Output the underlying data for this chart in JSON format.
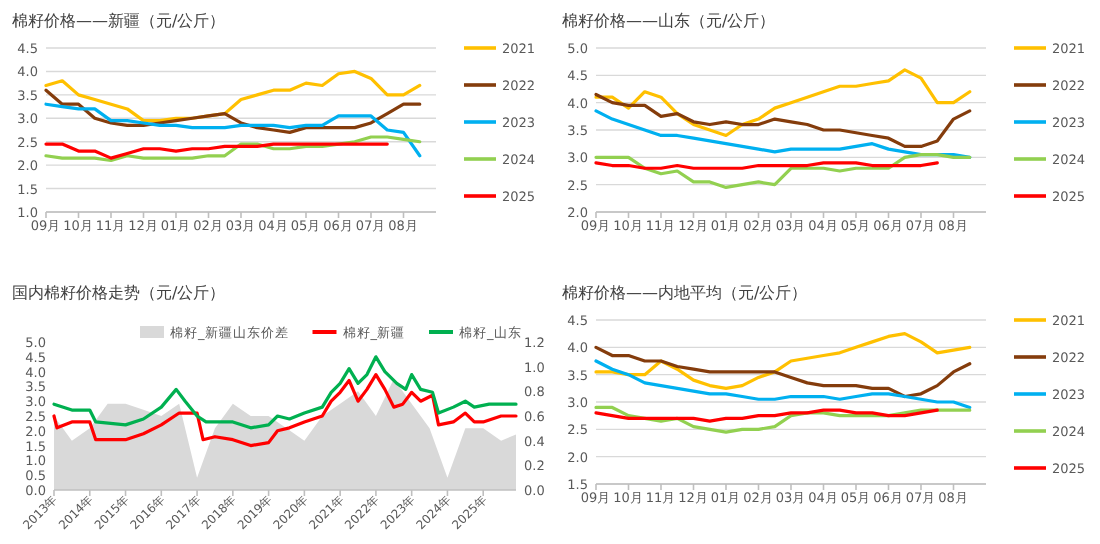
{
  "chart_data": [
    {
      "type": "line",
      "title": "棉籽价格——新疆（元/公斤）",
      "legend": "right",
      "grid": "y",
      "categories": [
        "09月",
        null,
        "10月",
        null,
        "11月",
        null,
        "12月",
        null,
        "01月",
        null,
        "02月",
        null,
        "03月",
        null,
        "04月",
        null,
        "05月",
        null,
        "06月",
        null,
        "07月",
        null,
        "08月",
        null
      ],
      "ylim": [
        1,
        4.5
      ],
      "yticks": [
        {
          "value": 1,
          "label": "1.0"
        },
        1.5,
        {
          "value": 2,
          "label": "2.0"
        },
        2.5,
        {
          "value": 3,
          "label": "3.0"
        },
        3.5,
        {
          "value": 4,
          "label": "4.0"
        },
        4.5
      ],
      "series": [
        {
          "name": "2021",
          "color": "#ffc000",
          "values": [
            3.7,
            3.8,
            3.5,
            3.4,
            3.3,
            3.2,
            2.95,
            2.95,
            3.0,
            3.0,
            3.05,
            3.1,
            3.4,
            3.5,
            3.6,
            3.6,
            3.75,
            3.7,
            3.95,
            4.0,
            3.85,
            3.5,
            3.5,
            3.7
          ]
        },
        {
          "name": "2022",
          "color": "#843c0c",
          "values": [
            3.6,
            3.3,
            3.3,
            3.0,
            2.9,
            2.85,
            2.85,
            2.9,
            2.95,
            3.0,
            3.05,
            3.1,
            2.9,
            2.8,
            2.75,
            2.7,
            2.8,
            2.8,
            2.8,
            2.8,
            2.9,
            3.1,
            3.3,
            3.3
          ]
        },
        {
          "name": "2023",
          "color": "#00b0f0",
          "values": [
            3.3,
            3.25,
            3.2,
            3.2,
            2.95,
            2.95,
            2.9,
            2.85,
            2.85,
            2.8,
            2.8,
            2.8,
            2.85,
            2.85,
            2.85,
            2.8,
            2.85,
            2.85,
            3.05,
            3.05,
            3.05,
            2.75,
            2.7,
            2.2
          ]
        },
        {
          "name": "2024",
          "color": "#92d050",
          "values": [
            2.2,
            2.15,
            2.15,
            2.15,
            2.1,
            2.2,
            2.15,
            2.15,
            2.15,
            2.15,
            2.2,
            2.2,
            2.45,
            2.45,
            2.35,
            2.35,
            2.4,
            2.4,
            2.45,
            2.5,
            2.6,
            2.6,
            2.55,
            2.5
          ]
        },
        {
          "name": "2025",
          "color": "#ff0000",
          "values": [
            2.45,
            2.45,
            2.3,
            2.3,
            2.15,
            2.25,
            2.35,
            2.35,
            2.3,
            2.35,
            2.35,
            2.4,
            2.4,
            2.4,
            2.45,
            2.45,
            2.45,
            2.45,
            2.45,
            2.45,
            2.45,
            2.45,
            null,
            null
          ]
        }
      ]
    },
    {
      "type": "line",
      "title": "棉籽价格——山东（元/公斤）",
      "legend": "right",
      "grid": "y",
      "categories": [
        "09月",
        null,
        "10月",
        null,
        "11月",
        null,
        "12月",
        null,
        "01月",
        null,
        "02月",
        null,
        "03月",
        null,
        "04月",
        null,
        "05月",
        null,
        "06月",
        null,
        "07月",
        null,
        "08月",
        null
      ],
      "ylim": [
        2,
        5
      ],
      "yticks": [
        {
          "value": 2,
          "label": "2.0"
        },
        2.5,
        {
          "value": 3,
          "label": "3.0"
        },
        3.5,
        {
          "value": 4,
          "label": "4.0"
        },
        4.5,
        {
          "value": 5,
          "label": "5.0"
        }
      ],
      "series": [
        {
          "name": "2021",
          "color": "#ffc000",
          "values": [
            4.1,
            4.1,
            3.9,
            4.2,
            4.1,
            3.8,
            3.6,
            3.5,
            3.4,
            3.6,
            3.7,
            3.9,
            4.0,
            4.1,
            4.2,
            4.3,
            4.3,
            4.35,
            4.4,
            4.6,
            4.45,
            4.0,
            4.0,
            4.2
          ]
        },
        {
          "name": "2022",
          "color": "#843c0c",
          "values": [
            4.15,
            4.0,
            3.95,
            3.95,
            3.75,
            3.8,
            3.65,
            3.6,
            3.65,
            3.6,
            3.6,
            3.7,
            3.65,
            3.6,
            3.5,
            3.5,
            3.45,
            3.4,
            3.35,
            3.2,
            3.2,
            3.3,
            3.7,
            3.85
          ]
        },
        {
          "name": "2023",
          "color": "#00b0f0",
          "values": [
            3.85,
            3.7,
            3.6,
            3.5,
            3.4,
            3.4,
            3.35,
            3.3,
            3.25,
            3.2,
            3.15,
            3.1,
            3.15,
            3.15,
            3.15,
            3.15,
            3.2,
            3.25,
            3.15,
            3.1,
            3.05,
            3.05,
            3.05,
            3.0
          ]
        },
        {
          "name": "2024",
          "color": "#92d050",
          "values": [
            3.0,
            3.0,
            3.0,
            2.8,
            2.7,
            2.75,
            2.55,
            2.55,
            2.45,
            2.5,
            2.55,
            2.5,
            2.8,
            2.8,
            2.8,
            2.75,
            2.8,
            2.8,
            2.8,
            3.0,
            3.05,
            3.05,
            3.0,
            3.0
          ]
        },
        {
          "name": "2025",
          "color": "#ff0000",
          "values": [
            2.9,
            2.85,
            2.85,
            2.8,
            2.8,
            2.85,
            2.8,
            2.8,
            2.8,
            2.8,
            2.85,
            2.85,
            2.85,
            2.85,
            2.9,
            2.9,
            2.9,
            2.85,
            2.85,
            2.85,
            2.85,
            2.9,
            null,
            null
          ]
        }
      ]
    },
    {
      "type": "line",
      "title": "国内棉籽价格走势（元/公斤）",
      "legend": "top",
      "grid": false,
      "xlim": [
        "2013-01",
        "2025-12"
      ],
      "xticks": [
        {
          "value": "2013",
          "label": "2013年"
        },
        {
          "value": "2014",
          "label": "2014年"
        },
        {
          "value": "2015",
          "label": "2015年"
        },
        {
          "value": "2016",
          "label": "2016年"
        },
        {
          "value": "2017",
          "label": "2017年"
        },
        {
          "value": "2018",
          "label": "2018年"
        },
        {
          "value": "2019",
          "label": "2019年"
        },
        {
          "value": "2020",
          "label": "2020年"
        },
        {
          "value": "2021",
          "label": "2021年"
        },
        {
          "value": "2022",
          "label": "2022年"
        },
        {
          "value": "2023",
          "label": "2023年"
        },
        {
          "value": "2024",
          "label": "2024年"
        },
        {
          "value": "2025",
          "label": "2025年"
        }
      ],
      "ylim": [
        0,
        5
      ],
      "yticks": [
        {
          "value": 0,
          "label": "0.0"
        },
        0.5,
        {
          "value": 1,
          "label": "1.0"
        },
        1.5,
        {
          "value": 2,
          "label": "2.0"
        },
        2.5,
        {
          "value": 3,
          "label": "3.0"
        },
        3.5,
        {
          "value": 4,
          "label": "4.0"
        },
        4.5,
        {
          "value": 5,
          "label": "5.0"
        }
      ],
      "y2lim": [
        0,
        1.2
      ],
      "y2ticks": [
        {
          "value": 0,
          "label": "0.0"
        },
        0.2,
        0.4,
        0.6,
        0.8,
        {
          "value": 1,
          "label": "1.0"
        },
        1.2
      ],
      "series": [
        {
          "name": "棉籽_新疆山东价差",
          "type": "area",
          "axis": "y2",
          "color": "#d9d9d9",
          "x": [
            "2013-01",
            "2013-07",
            "2014-01",
            "2014-07",
            "2015-01",
            "2015-07",
            "2016-01",
            "2016-07",
            "2017-01",
            "2017-07",
            "2018-01",
            "2018-07",
            "2019-01",
            "2019-07",
            "2020-01",
            "2020-07",
            "2021-01",
            "2021-07",
            "2022-01",
            "2022-07",
            "2023-01",
            "2023-07",
            "2024-01",
            "2024-07",
            "2025-01",
            "2025-07",
            "2025-12"
          ],
          "values": [
            0.6,
            0.4,
            0.5,
            0.7,
            0.7,
            0.65,
            0.6,
            0.7,
            0.1,
            0.5,
            0.7,
            0.6,
            0.6,
            0.5,
            0.4,
            0.6,
            0.7,
            0.8,
            0.6,
            0.9,
            0.7,
            0.5,
            0.1,
            0.5,
            0.5,
            0.4,
            0.45
          ]
        },
        {
          "name": "棉籽_新疆",
          "color": "#ff0000",
          "x": [
            "2013-01",
            "2013-02",
            "2013-07",
            "2014-01",
            "2014-03",
            "2014-07",
            "2015-01",
            "2015-07",
            "2016-01",
            "2016-07",
            "2017-01",
            "2017-03",
            "2017-07",
            "2018-01",
            "2018-07",
            "2019-01",
            "2019-04",
            "2019-08",
            "2020-01",
            "2020-07",
            "2020-10",
            "2021-01",
            "2021-04",
            "2021-07",
            "2021-10",
            "2022-01",
            "2022-04",
            "2022-07",
            "2022-10",
            "2023-01",
            "2023-04",
            "2023-08",
            "2023-10",
            "2024-03",
            "2024-07",
            "2024-10",
            "2025-01",
            "2025-07",
            "2025-12"
          ],
          "values": [
            2.5,
            2.1,
            2.3,
            2.3,
            1.7,
            1.7,
            1.7,
            1.9,
            2.2,
            2.6,
            2.6,
            1.7,
            1.8,
            1.7,
            1.5,
            1.6,
            2.0,
            2.1,
            2.3,
            2.5,
            3.0,
            3.3,
            3.7,
            3.0,
            3.4,
            3.9,
            3.4,
            2.8,
            2.9,
            3.3,
            3.0,
            3.2,
            2.2,
            2.3,
            2.6,
            2.3,
            2.3,
            2.5,
            2.5
          ]
        },
        {
          "name": "棉籽_山东",
          "color": "#00b050",
          "x": [
            "2013-01",
            "2013-07",
            "2014-01",
            "2014-03",
            "2015-01",
            "2015-07",
            "2016-01",
            "2016-06",
            "2016-09",
            "2017-01",
            "2017-04",
            "2018-01",
            "2018-07",
            "2019-01",
            "2019-04",
            "2019-08",
            "2020-01",
            "2020-07",
            "2020-10",
            "2021-01",
            "2021-04",
            "2021-07",
            "2021-10",
            "2022-01",
            "2022-04",
            "2022-08",
            "2022-11",
            "2023-01",
            "2023-04",
            "2023-08",
            "2023-10",
            "2024-03",
            "2024-07",
            "2024-10",
            "2025-03",
            "2025-12"
          ],
          "values": [
            2.9,
            2.7,
            2.7,
            2.3,
            2.2,
            2.4,
            2.8,
            3.4,
            3.0,
            2.5,
            2.3,
            2.3,
            2.1,
            2.2,
            2.5,
            2.4,
            2.6,
            2.8,
            3.3,
            3.6,
            4.1,
            3.6,
            3.9,
            4.5,
            4.0,
            3.6,
            3.4,
            3.9,
            3.4,
            3.3,
            2.6,
            2.8,
            3.0,
            2.8,
            2.9,
            2.9
          ]
        }
      ]
    },
    {
      "type": "line",
      "title": "棉籽价格——内地平均（元/公斤）",
      "legend": "right",
      "grid": "y",
      "categories": [
        "09月",
        null,
        "10月",
        null,
        "11月",
        null,
        "12月",
        null,
        "01月",
        null,
        "02月",
        null,
        "03月",
        null,
        "04月",
        null,
        "05月",
        null,
        "06月",
        null,
        "07月",
        null,
        "08月",
        null
      ],
      "ylim": [
        1.5,
        4.5
      ],
      "yticks": [
        1.5,
        {
          "value": 2,
          "label": "2.0"
        },
        2.5,
        {
          "value": 3,
          "label": "3.0"
        },
        3.5,
        {
          "value": 4,
          "label": "4.0"
        },
        4.5
      ],
      "series": [
        {
          "name": "2021",
          "color": "#ffc000",
          "values": [
            3.55,
            3.55,
            3.5,
            3.5,
            3.75,
            3.6,
            3.4,
            3.3,
            3.25,
            3.3,
            3.45,
            3.55,
            3.75,
            3.8,
            3.85,
            3.9,
            4.0,
            4.1,
            4.2,
            4.25,
            4.1,
            3.9,
            3.95,
            4.0
          ]
        },
        {
          "name": "2022",
          "color": "#843c0c",
          "values": [
            4.0,
            3.85,
            3.85,
            3.75,
            3.75,
            3.65,
            3.6,
            3.55,
            3.55,
            3.55,
            3.55,
            3.55,
            3.45,
            3.35,
            3.3,
            3.3,
            3.3,
            3.25,
            3.25,
            3.1,
            3.15,
            3.3,
            3.55,
            3.7
          ]
        },
        {
          "name": "2023",
          "color": "#00b0f0",
          "values": [
            3.75,
            3.6,
            3.5,
            3.35,
            3.3,
            3.25,
            3.2,
            3.15,
            3.15,
            3.1,
            3.05,
            3.05,
            3.1,
            3.1,
            3.1,
            3.05,
            3.1,
            3.15,
            3.15,
            3.1,
            3.05,
            3.0,
            3.0,
            2.9
          ]
        },
        {
          "name": "2024",
          "color": "#92d050",
          "values": [
            2.9,
            2.9,
            2.75,
            2.7,
            2.65,
            2.7,
            2.55,
            2.5,
            2.45,
            2.5,
            2.5,
            2.55,
            2.75,
            2.8,
            2.8,
            2.75,
            2.75,
            2.75,
            2.75,
            2.8,
            2.85,
            2.85,
            2.85,
            2.85
          ]
        },
        {
          "name": "2025",
          "color": "#ff0000",
          "values": [
            2.8,
            2.75,
            2.7,
            2.7,
            2.7,
            2.7,
            2.7,
            2.65,
            2.7,
            2.7,
            2.75,
            2.75,
            2.8,
            2.8,
            2.85,
            2.85,
            2.8,
            2.8,
            2.75,
            2.75,
            2.8,
            2.85,
            null,
            null
          ]
        }
      ]
    }
  ]
}
